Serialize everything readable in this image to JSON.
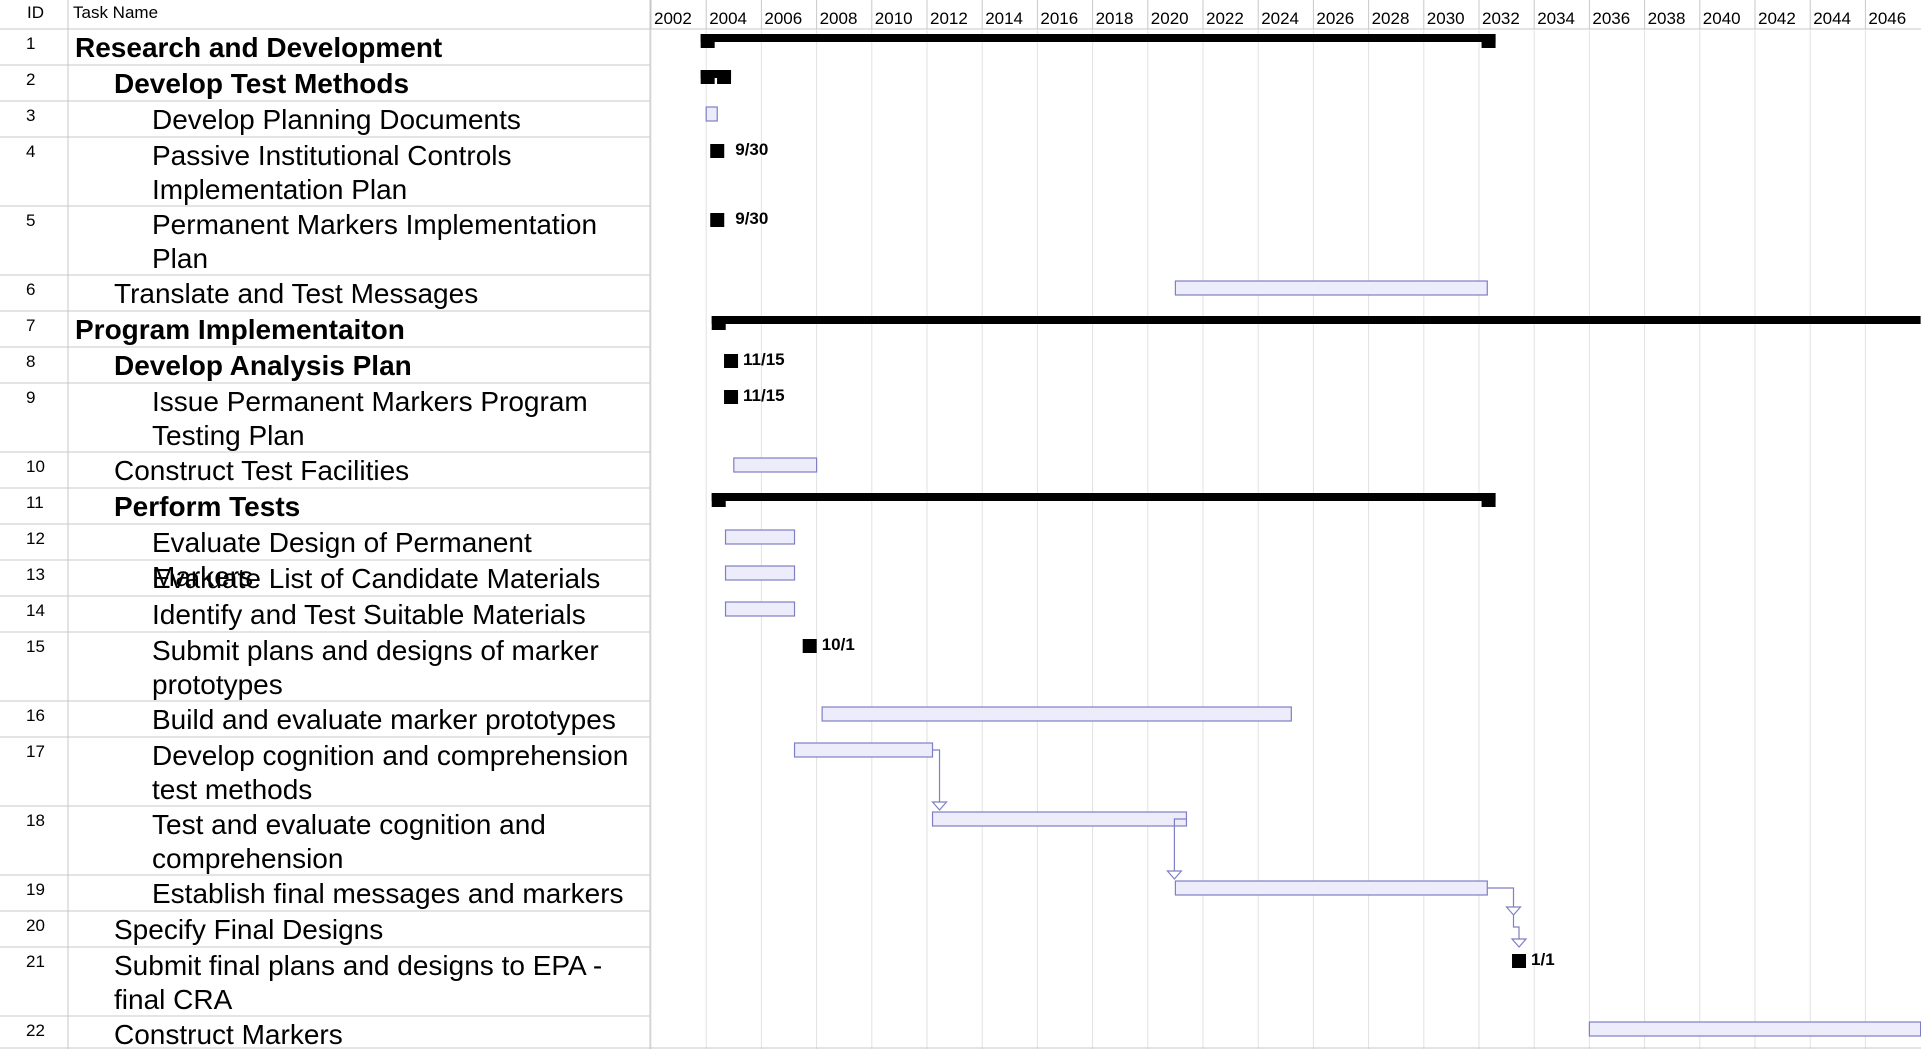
{
  "chart_data": {
    "type": "gantt",
    "columns": {
      "id": "ID",
      "name": "Task Name"
    },
    "year_labels": [
      "2002",
      "2004",
      "2006",
      "2008",
      "2010",
      "2012",
      "2014",
      "2016",
      "2018",
      "2020",
      "2022",
      "2024",
      "2026",
      "2028",
      "2030",
      "2032",
      "2034",
      "2036",
      "2038",
      "2040",
      "2042",
      "2044",
      "2046"
    ],
    "x_range": [
      2002.0,
      2048.0
    ],
    "tasks": [
      {
        "id": "1",
        "name": "Research and Development",
        "level": 0,
        "bold": true,
        "kind": "summary",
        "start": 2003.8,
        "end": 2032.6
      },
      {
        "id": "2",
        "name": "Develop Test Methods",
        "level": 1,
        "bold": true,
        "kind": "summary",
        "start": 2003.8,
        "end": 2004.9
      },
      {
        "id": "3",
        "name": "Develop Planning Documents",
        "level": 2,
        "bold": false,
        "kind": "bar",
        "start": 2004.0,
        "end": 2004.4
      },
      {
        "id": "4",
        "name": "Passive Institutional Controls Implementation Plan",
        "level": 2,
        "bold": false,
        "kind": "milestone",
        "start": 2004.4,
        "end": 2004.9,
        "label": "9/30"
      },
      {
        "id": "5",
        "name": "Permanent Markers Implementation Plan",
        "level": 2,
        "bold": false,
        "kind": "milestone",
        "start": 2004.4,
        "end": 2004.9,
        "label": "9/30"
      },
      {
        "id": "6",
        "name": "Translate and Test Messages",
        "level": 1,
        "bold": false,
        "kind": "bar",
        "start": 2021.0,
        "end": 2032.3
      },
      {
        "id": "7",
        "name": "Program Implementaiton",
        "level": 0,
        "bold": true,
        "kind": "summary",
        "start": 2004.2,
        "end": 2048.0
      },
      {
        "id": "8",
        "name": "Develop Analysis Plan",
        "level": 1,
        "bold": true,
        "kind": "milestone",
        "start": 2004.9,
        "end": 2004.9,
        "label": "11/15"
      },
      {
        "id": "9",
        "name": "Issue Permanent Markers Program Testing Plan",
        "level": 2,
        "bold": false,
        "kind": "milestone",
        "start": 2004.9,
        "end": 2004.9,
        "label": "11/15"
      },
      {
        "id": "10",
        "name": "Construct Test Facilities",
        "level": 1,
        "bold": false,
        "kind": "bar",
        "start": 2005.0,
        "end": 2008.0
      },
      {
        "id": "11",
        "name": "Perform Tests",
        "level": 1,
        "bold": true,
        "kind": "summary",
        "start": 2004.2,
        "end": 2032.6
      },
      {
        "id": "12",
        "name": "Evaluate Design of Permanent Markers",
        "level": 2,
        "bold": false,
        "kind": "bar",
        "start": 2004.7,
        "end": 2007.2
      },
      {
        "id": "13",
        "name": "Evaluate List of Candidate Materials",
        "level": 2,
        "bold": false,
        "kind": "bar",
        "start": 2004.7,
        "end": 2007.2
      },
      {
        "id": "14",
        "name": "Identify and Test Suitable Materials",
        "level": 2,
        "bold": false,
        "kind": "bar",
        "start": 2004.7,
        "end": 2007.2
      },
      {
        "id": "15",
        "name": "Submit plans and designs of marker prototypes",
        "level": 2,
        "bold": false,
        "kind": "milestone",
        "start": 2007.75,
        "end": 2007.75,
        "label": "10/1"
      },
      {
        "id": "16",
        "name": "Build and evaluate marker prototypes",
        "level": 2,
        "bold": false,
        "kind": "bar",
        "start": 2008.2,
        "end": 2025.2
      },
      {
        "id": "17",
        "name": "Develop cognition and comprehension test methods",
        "level": 2,
        "bold": false,
        "kind": "bar",
        "start": 2007.2,
        "end": 2012.2
      },
      {
        "id": "18",
        "name": "Test and evaluate cognition and comprehension",
        "level": 2,
        "bold": false,
        "kind": "bar",
        "start": 2012.2,
        "end": 2021.4
      },
      {
        "id": "19",
        "name": "Establish final messages and markers",
        "level": 2,
        "bold": false,
        "kind": "bar",
        "start": 2021.0,
        "end": 2032.3
      },
      {
        "id": "20",
        "name": "Specify Final Designs",
        "level": 1,
        "bold": false,
        "kind": "none"
      },
      {
        "id": "21",
        "name": "Submit final plans and designs to EPA - final CRA",
        "level": 1,
        "bold": false,
        "kind": "milestone",
        "start": 2033.45,
        "end": 2033.45,
        "label": "1/1"
      },
      {
        "id": "22",
        "name": "Construct Markers",
        "level": 1,
        "bold": false,
        "kind": "bar",
        "start": 2036.0,
        "end": 2048.0
      }
    ]
  }
}
